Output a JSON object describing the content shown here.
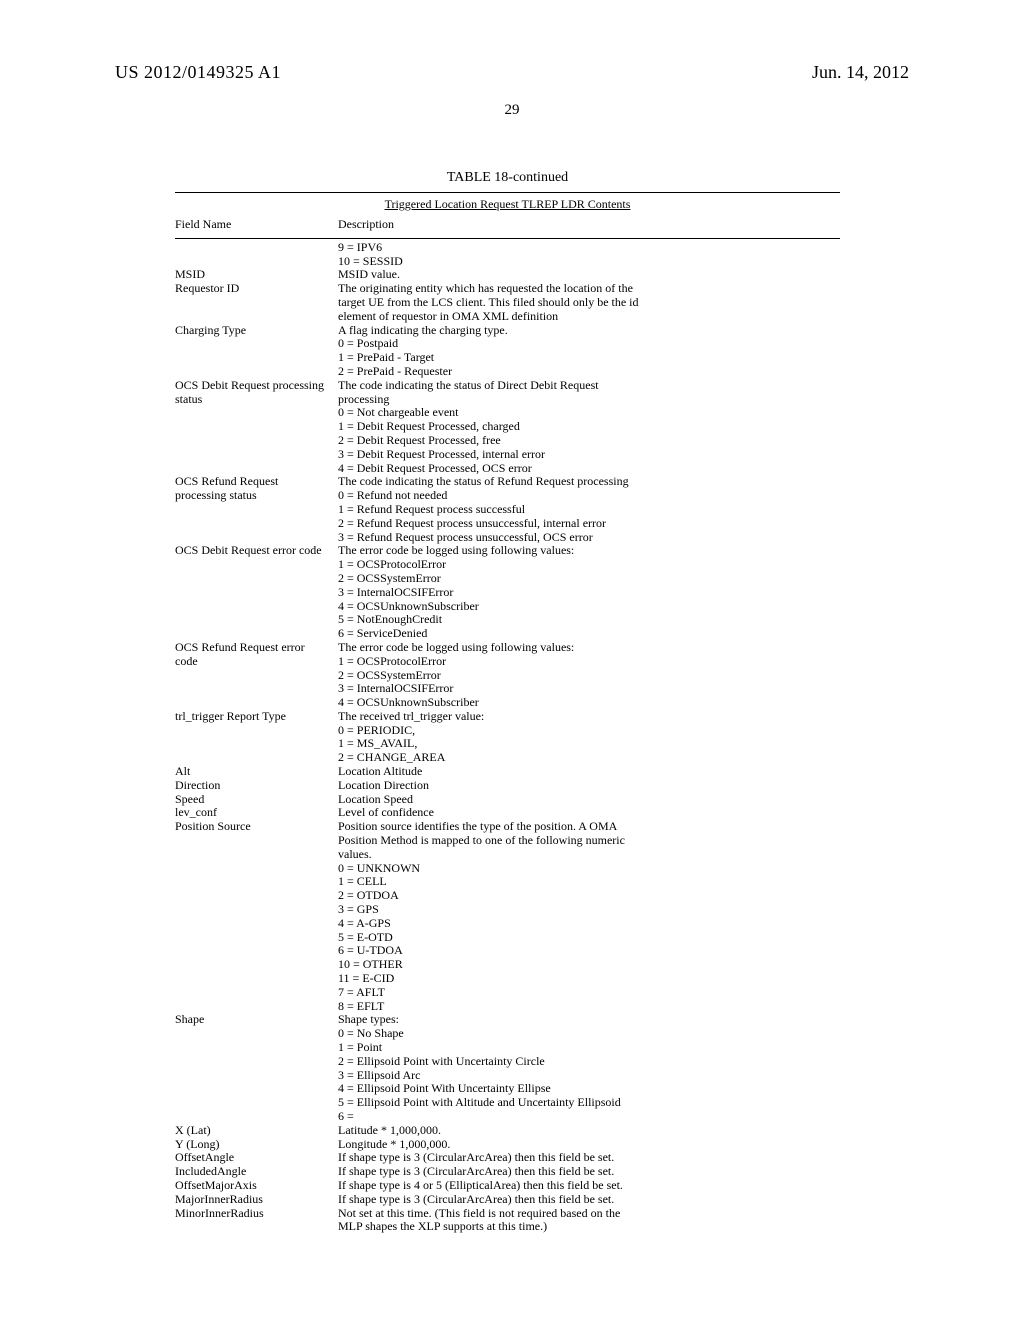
{
  "header": {
    "pub_number": "US 2012/0149325 A1",
    "pub_date": "Jun. 14, 2012",
    "page_number": "29"
  },
  "table": {
    "title": "TABLE 18-continued",
    "subtitle": "Triggered Location Request TLREP LDR Contents",
    "col_headers": [
      "Field Name",
      "Description"
    ],
    "rows": [
      {
        "field": "",
        "desc": [
          "9 = IPV6",
          "10 = SESSID"
        ]
      },
      {
        "field": "MSID",
        "desc": [
          "MSID value."
        ]
      },
      {
        "field": "Requestor ID",
        "desc": [
          "The originating entity which has requested the location of the",
          "target UE from the LCS client. This filed should only be the id",
          "element of requestor in OMA XML definition"
        ]
      },
      {
        "field": "Charging Type",
        "desc": [
          "A flag indicating the charging type.",
          "0 = Postpaid",
          "1 = PrePaid - Target",
          "2 = PrePaid - Requester"
        ]
      },
      {
        "field": "OCS Debit Request processing status",
        "desc": [
          "The code indicating the status of Direct Debit Request",
          "processing",
          "0 = Not chargeable event",
          "1 = Debit Request Processed, charged",
          "2 = Debit Request Processed, free",
          "3 = Debit Request Processed, internal error",
          "4 = Debit Request Processed, OCS error"
        ]
      },
      {
        "field": "OCS Refund Request processing status",
        "desc": [
          "The code indicating the status of Refund Request processing",
          "0 = Refund not needed",
          "1 = Refund Request process successful",
          "2 = Refund Request process unsuccessful, internal error",
          "3 = Refund Request process unsuccessful, OCS error"
        ]
      },
      {
        "field": "OCS Debit Request error code",
        "desc": [
          "The error code be logged using following values:",
          "1 = OCSProtocolError",
          "2 = OCSSystemError",
          "3 = InternalOCSIFError",
          "4 = OCSUnknownSubscriber",
          "5 = NotEnoughCredit",
          "6 = ServiceDenied"
        ]
      },
      {
        "field": "OCS Refund Request error code",
        "desc": [
          "The error code be logged using following values:",
          "1 = OCSProtocolError",
          "2 = OCSSystemError",
          "3 = InternalOCSIFError",
          "4 = OCSUnknownSubscriber"
        ]
      },
      {
        "field": "trl_trigger Report Type",
        "desc": [
          "The received trl_trigger value:",
          "0 = PERIODIC,",
          "1 = MS_AVAIL,",
          "2 = CHANGE_AREA"
        ]
      },
      {
        "field": "Alt",
        "desc": [
          "Location Altitude"
        ]
      },
      {
        "field": "Direction",
        "desc": [
          "Location Direction"
        ]
      },
      {
        "field": "Speed",
        "desc": [
          "Location Speed"
        ]
      },
      {
        "field": "lev_conf",
        "desc": [
          "Level of confidence"
        ]
      },
      {
        "field": "Position Source",
        "desc": [
          "Position source identifies the type of the position. A OMA",
          "Position Method is mapped to one of the following numeric",
          "values.",
          "0 = UNKNOWN",
          "1 = CELL",
          "2 = OTDOA",
          "3 = GPS",
          "4 = A-GPS",
          "5 = E-OTD",
          "6 = U-TDOA",
          "10 = OTHER",
          "11 = E-CID",
          "7 = AFLT",
          "8 = EFLT"
        ]
      },
      {
        "field": "Shape",
        "desc": [
          "Shape types:",
          "0 = No Shape",
          "1 = Point",
          "2 = Ellipsoid Point with Uncertainty Circle",
          "3 = Ellipsoid Arc",
          "4 = Ellipsoid Point With Uncertainty Ellipse",
          "5 = Ellipsoid Point with Altitude and Uncertainty Ellipsoid",
          "6 ="
        ]
      },
      {
        "field": "X (Lat)",
        "desc": [
          "Latitude * 1,000,000."
        ]
      },
      {
        "field": "Y (Long)",
        "desc": [
          "Longitude * 1,000,000."
        ]
      },
      {
        "field": "OffsetAngle",
        "desc": [
          "If shape type is 3 (CircularArcArea) then this field be set."
        ]
      },
      {
        "field": "IncludedAngle",
        "desc": [
          "If shape type is 3 (CircularArcArea) then this field be set."
        ]
      },
      {
        "field": "OffsetMajorAxis",
        "desc": [
          "If shape type is 4 or 5 (EllipticalArea) then this field be set."
        ]
      },
      {
        "field": "MajorInnerRadius",
        "desc": [
          "If shape type is 3 (CircularArcArea) then this field be set."
        ]
      },
      {
        "field": "MinorInnerRadius",
        "desc": [
          "Not set at this time. (This field is not required based on the",
          "MLP shapes the XLP supports at this time.)"
        ]
      }
    ]
  }
}
